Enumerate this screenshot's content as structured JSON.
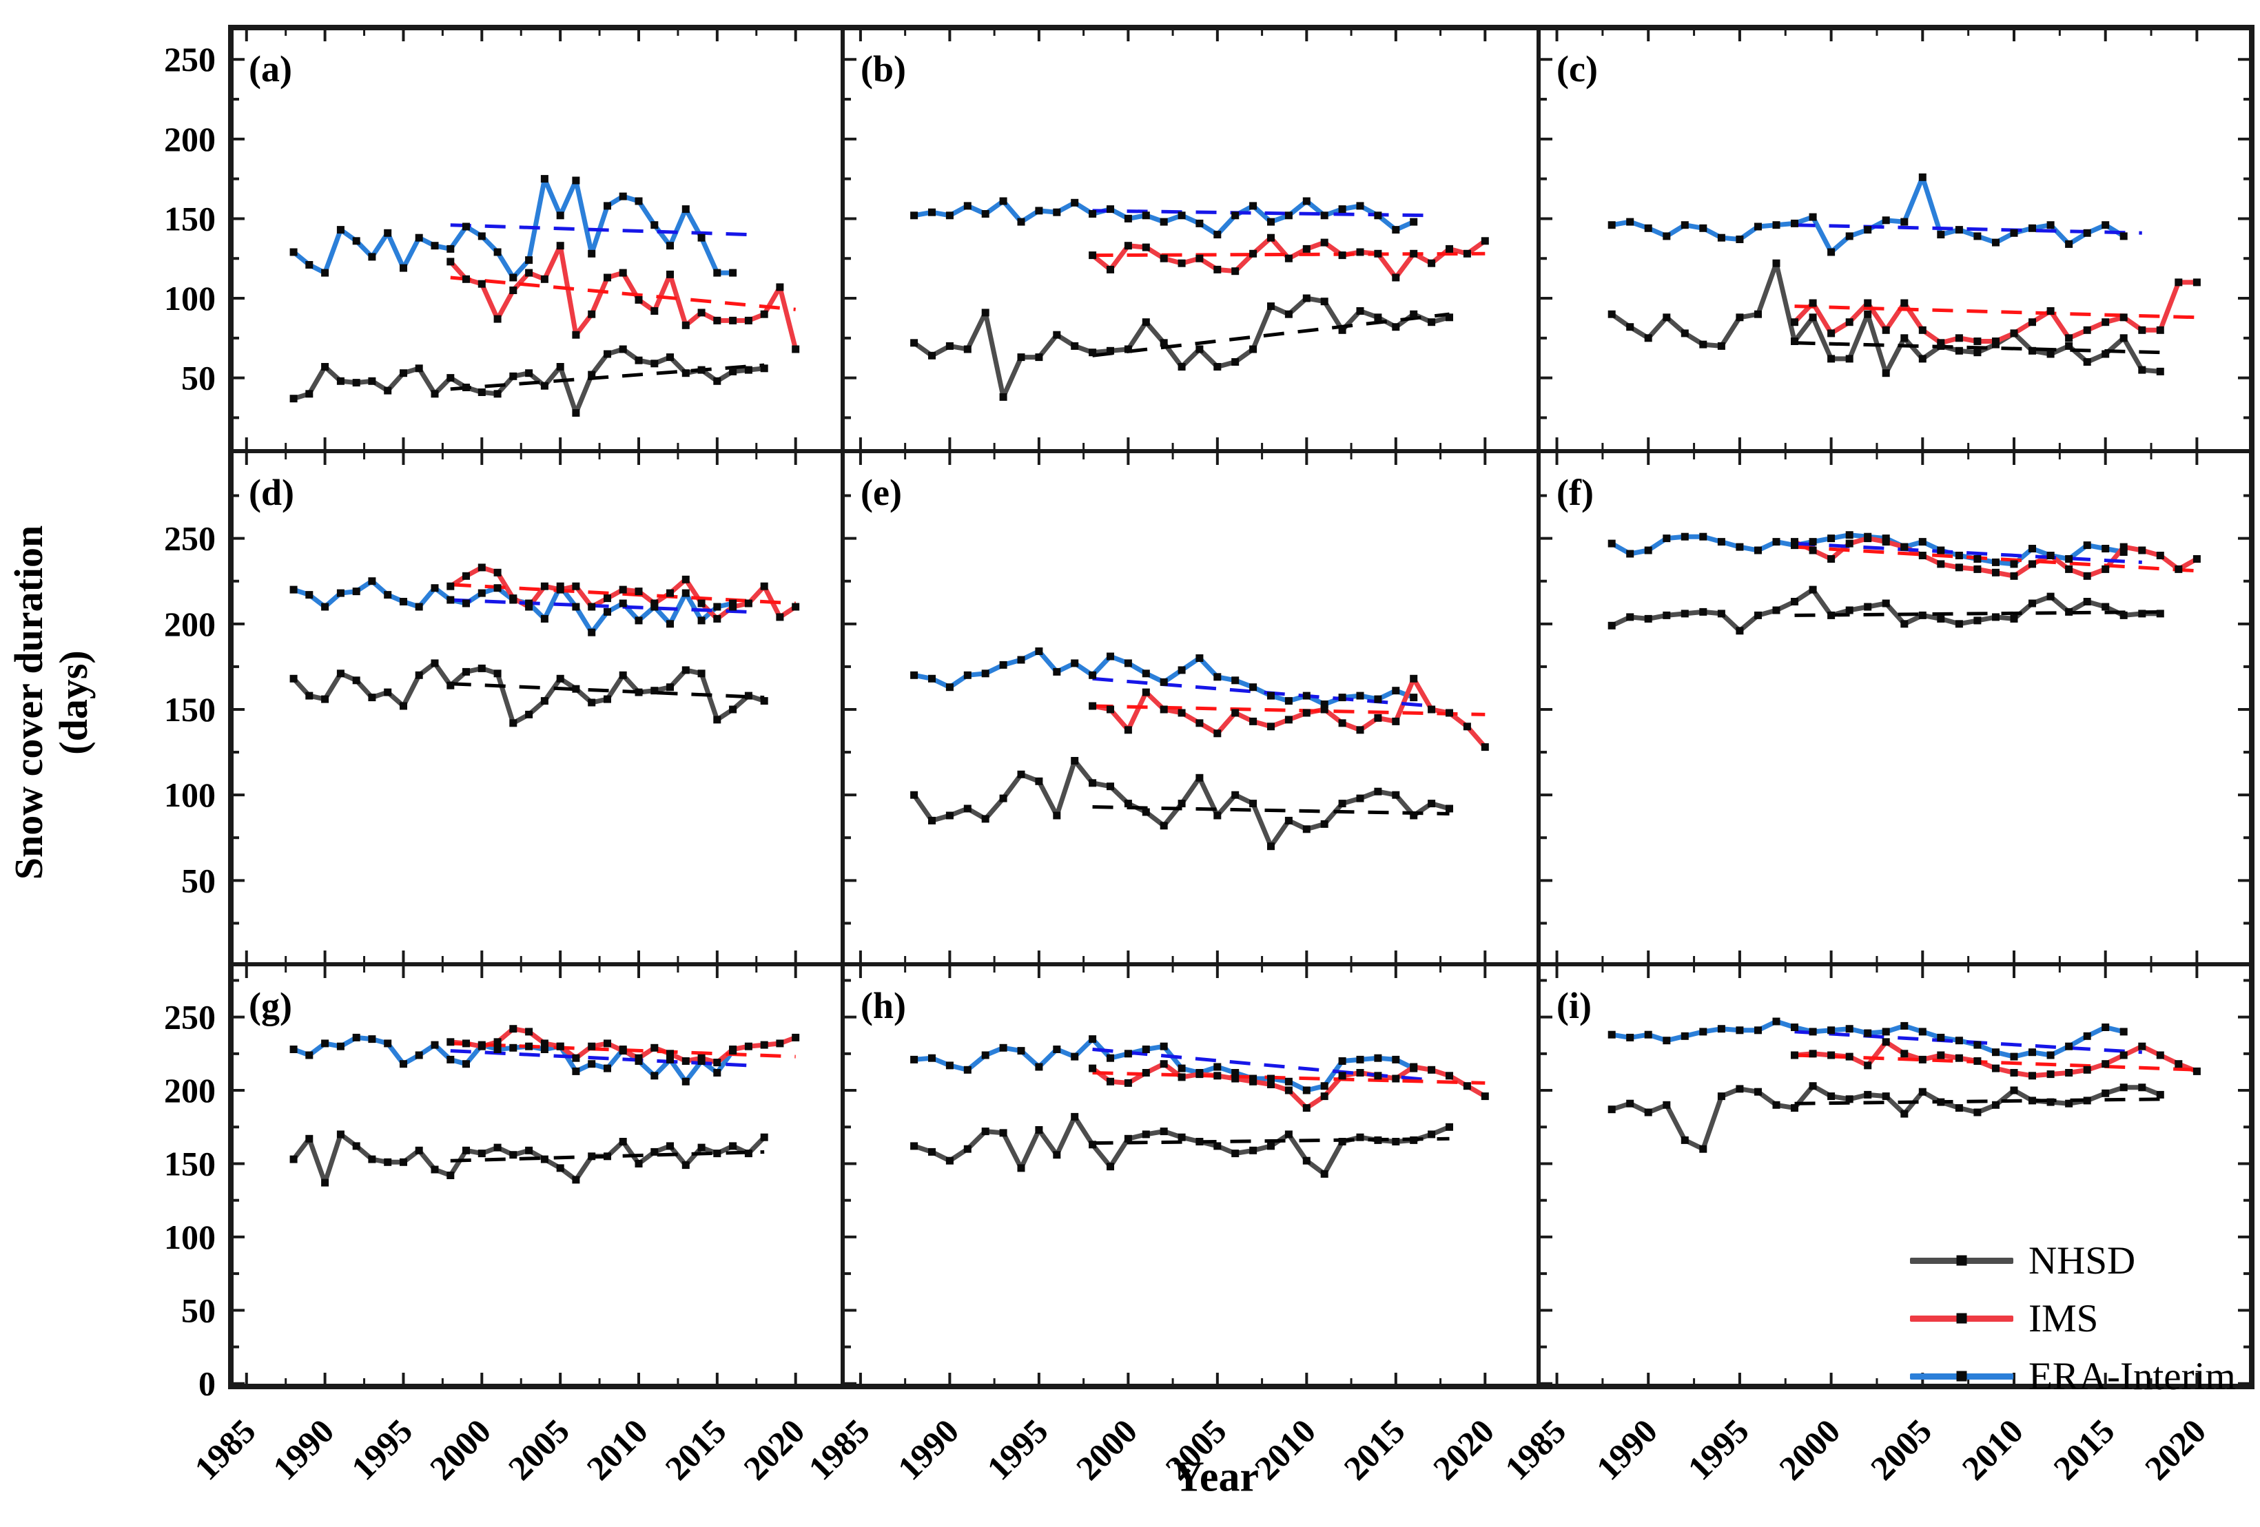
{
  "figure": {
    "ylabel_line1": "Snow cover duration",
    "ylabel_line2": "(days)",
    "xlabel": "Year",
    "legend": [
      {
        "key": "nhsd",
        "label": "NHSD",
        "color": "#4d4d4d"
      },
      {
        "key": "ims",
        "label": "IMS",
        "color": "#ee3b43"
      },
      {
        "key": "era",
        "label": "ERA-Interim",
        "color": "#2b7fd9"
      }
    ]
  },
  "chart_data": {
    "type": "line",
    "title": "",
    "xlabel": "Year",
    "ylabel": "Snow cover duration (days)",
    "legend_position": "inside panel (i), lower right",
    "grid": false,
    "marker": "black-square",
    "x_tick_labels": [
      1985,
      1990,
      1995,
      2000,
      2005,
      2010,
      2015,
      2020
    ],
    "x_range": [
      1984,
      2023
    ],
    "row_y_ticks": [
      {
        "labels": [
          250,
          200,
          150,
          100,
          50
        ],
        "ylim": [
          4,
          270
        ]
      },
      {
        "labels": [
          250,
          200,
          150,
          100,
          50
        ],
        "ylim": [
          1,
          301
        ]
      },
      {
        "labels": [
          250,
          200,
          150,
          100,
          50,
          0
        ],
        "ylim": [
          -2,
          286
        ]
      }
    ],
    "colors": {
      "nhsd": "#4d4d4d",
      "ims": "#ee3b43",
      "era": "#2b7fd9",
      "nhsd_trend": "#000000",
      "ims_trend": "#ff1515",
      "era_trend": "#1616e8",
      "axis": "#1a1a1a",
      "marker": "#0a0a0a"
    },
    "series_meta": {
      "nhsd": {
        "label": "NHSD",
        "start_year": 1988
      },
      "ims": {
        "label": "IMS",
        "start_year": 1998
      },
      "era": {
        "label": "ERA-Interim",
        "start_year": 1988
      }
    },
    "panels": [
      {
        "label": "(a)",
        "row": 0,
        "era": [
          129,
          121,
          116,
          143,
          136,
          126,
          141,
          119,
          138,
          133,
          131,
          145,
          139,
          129,
          113,
          124,
          175,
          152,
          174,
          128,
          158,
          164,
          161,
          146,
          133,
          156,
          138,
          116,
          116
        ],
        "nhsd": [
          37,
          40,
          57,
          48,
          47,
          48,
          42,
          53,
          56,
          40,
          50,
          44,
          41,
          40,
          51,
          53,
          45,
          57,
          28,
          52,
          65,
          68,
          61,
          59,
          63,
          53,
          55,
          48,
          54,
          55,
          56
        ],
        "ims": [
          123,
          112,
          109,
          87,
          105,
          116,
          112,
          133,
          77,
          90,
          113,
          116,
          99,
          92,
          115,
          83,
          91,
          86,
          86,
          86,
          90,
          107,
          68
        ],
        "trends": {
          "nhsd": [
            1998,
            43,
            2018,
            58
          ],
          "ims": [
            1998,
            113,
            2020,
            93
          ],
          "era": [
            1998,
            146,
            2017,
            140
          ]
        }
      },
      {
        "label": "(b)",
        "row": 0,
        "era": [
          152,
          154,
          152,
          158,
          153,
          161,
          148,
          155,
          154,
          160,
          153,
          156,
          150,
          152,
          148,
          152,
          147,
          140,
          152,
          158,
          148,
          152,
          161,
          152,
          156,
          158,
          152,
          143,
          148
        ],
        "nhsd": [
          72,
          64,
          70,
          68,
          91,
          38,
          63,
          63,
          77,
          70,
          66,
          67,
          68,
          85,
          72,
          57,
          68,
          57,
          60,
          68,
          95,
          90,
          100,
          98,
          80,
          92,
          88,
          82,
          90,
          85,
          88
        ],
        "ims": [
          127,
          118,
          133,
          132,
          125,
          122,
          125,
          118,
          117,
          128,
          138,
          125,
          131,
          135,
          127,
          129,
          128,
          113,
          128,
          122,
          131,
          128,
          136
        ],
        "trends": {
          "nhsd": [
            1998,
            64,
            2018,
            90
          ],
          "ims": [
            1998,
            127,
            2020,
            128
          ],
          "era": [
            1998,
            155,
            2017,
            152
          ]
        }
      },
      {
        "label": "(c)",
        "row": 0,
        "era": [
          146,
          148,
          144,
          139,
          146,
          144,
          138,
          137,
          145,
          146,
          147,
          151,
          129,
          139,
          143,
          149,
          148,
          176,
          140,
          143,
          139,
          135,
          141,
          144,
          146,
          134,
          141,
          146,
          139
        ],
        "nhsd": [
          90,
          82,
          75,
          88,
          78,
          71,
          70,
          88,
          90,
          122,
          73,
          88,
          62,
          62,
          90,
          53,
          75,
          62,
          70,
          67,
          66,
          71,
          78,
          67,
          65,
          70,
          60,
          65,
          75,
          55,
          54
        ],
        "ims": [
          85,
          97,
          78,
          85,
          97,
          80,
          97,
          80,
          72,
          75,
          73,
          73,
          78,
          85,
          92,
          75,
          80,
          85,
          88,
          80,
          80,
          110,
          110
        ],
        "trends": {
          "nhsd": [
            1998,
            72,
            2018,
            66
          ],
          "ims": [
            1998,
            95,
            2020,
            88
          ],
          "era": [
            1998,
            146,
            2017,
            141
          ]
        }
      },
      {
        "label": "(d)",
        "row": 1,
        "era": [
          220,
          217,
          210,
          218,
          219,
          225,
          217,
          213,
          210,
          221,
          214,
          212,
          218,
          221,
          214,
          212,
          203,
          222,
          210,
          195,
          207,
          212,
          202,
          210,
          200,
          218,
          202,
          210,
          212
        ],
        "nhsd": [
          168,
          158,
          156,
          171,
          167,
          157,
          160,
          152,
          170,
          177,
          164,
          172,
          174,
          171,
          142,
          147,
          155,
          168,
          162,
          154,
          156,
          170,
          160,
          161,
          163,
          173,
          171,
          144,
          150,
          158,
          155
        ],
        "ims": [
          222,
          228,
          233,
          230,
          215,
          210,
          222,
          220,
          222,
          210,
          215,
          220,
          219,
          212,
          218,
          226,
          212,
          203,
          210,
          212,
          222,
          204,
          210
        ],
        "trends": {
          "nhsd": [
            1998,
            165,
            2018,
            157
          ],
          "ims": [
            1998,
            223,
            2020,
            212
          ],
          "era": [
            1998,
            214,
            2017,
            207
          ]
        }
      },
      {
        "label": "(e)",
        "row": 1,
        "era": [
          170,
          168,
          163,
          170,
          171,
          176,
          179,
          184,
          172,
          177,
          170,
          181,
          177,
          171,
          166,
          173,
          180,
          169,
          167,
          163,
          158,
          155,
          158,
          153,
          157,
          158,
          156,
          161,
          157
        ],
        "nhsd": [
          100,
          85,
          88,
          92,
          86,
          98,
          112,
          108,
          88,
          120,
          107,
          105,
          95,
          90,
          82,
          95,
          110,
          88,
          100,
          95,
          70,
          85,
          80,
          83,
          95,
          98,
          102,
          100,
          88,
          95,
          92
        ],
        "ims": [
          152,
          150,
          138,
          160,
          150,
          148,
          142,
          136,
          148,
          143,
          140,
          144,
          148,
          150,
          142,
          138,
          145,
          143,
          168,
          150,
          148,
          140,
          128
        ],
        "trends": {
          "nhsd": [
            1998,
            93,
            2018,
            89
          ],
          "ims": [
            1998,
            152,
            2020,
            147
          ],
          "era": [
            1998,
            168,
            2017,
            152
          ]
        }
      },
      {
        "label": "(f)",
        "row": 1,
        "era": [
          247,
          241,
          243,
          250,
          251,
          251,
          248,
          245,
          243,
          248,
          246,
          248,
          250,
          252,
          251,
          250,
          245,
          248,
          243,
          240,
          238,
          236,
          235,
          244,
          240,
          238,
          246,
          244,
          242
        ],
        "nhsd": [
          199,
          204,
          203,
          205,
          206,
          207,
          206,
          196,
          205,
          208,
          213,
          220,
          205,
          208,
          210,
          212,
          200,
          205,
          203,
          200,
          202,
          204,
          203,
          212,
          216,
          207,
          213,
          210,
          205,
          206,
          206
        ],
        "ims": [
          248,
          243,
          238,
          247,
          250,
          248,
          245,
          240,
          235,
          233,
          232,
          230,
          228,
          235,
          240,
          232,
          228,
          232,
          245,
          243,
          240,
          232,
          238
        ],
        "trends": {
          "nhsd": [
            1998,
            205,
            2018,
            207
          ],
          "ims": [
            1998,
            245,
            2020,
            231
          ],
          "era": [
            1998,
            247,
            2017,
            236
          ]
        }
      },
      {
        "label": "(g)",
        "row": 2,
        "era": [
          228,
          224,
          232,
          230,
          236,
          235,
          232,
          218,
          224,
          231,
          221,
          218,
          231,
          228,
          229,
          230,
          228,
          230,
          213,
          218,
          215,
          228,
          220,
          210,
          221,
          206,
          220,
          212,
          227
        ],
        "nhsd": [
          153,
          167,
          137,
          170,
          162,
          153,
          151,
          151,
          159,
          146,
          142,
          159,
          157,
          161,
          156,
          159,
          153,
          147,
          139,
          155,
          155,
          165,
          150,
          158,
          162,
          149,
          161,
          157,
          162,
          157,
          168
        ],
        "ims": [
          233,
          232,
          230,
          233,
          242,
          240,
          232,
          230,
          222,
          230,
          232,
          227,
          222,
          229,
          225,
          220,
          222,
          219,
          228,
          230,
          231,
          232,
          236
        ],
        "trends": {
          "nhsd": [
            1998,
            152,
            2018,
            158
          ],
          "ims": [
            1998,
            232,
            2020,
            223
          ],
          "era": [
            1998,
            227,
            2017,
            217
          ]
        }
      },
      {
        "label": "(h)",
        "row": 2,
        "era": [
          221,
          222,
          217,
          214,
          224,
          229,
          227,
          216,
          228,
          223,
          235,
          222,
          225,
          228,
          230,
          215,
          212,
          216,
          212,
          208,
          208,
          206,
          200,
          203,
          220,
          221,
          222,
          221,
          215
        ],
        "nhsd": [
          162,
          158,
          152,
          160,
          172,
          171,
          147,
          173,
          156,
          182,
          163,
          148,
          167,
          170,
          172,
          168,
          165,
          162,
          157,
          159,
          162,
          170,
          152,
          143,
          165,
          168,
          166,
          165,
          166,
          170,
          175
        ],
        "ims": [
          215,
          206,
          205,
          212,
          218,
          209,
          211,
          210,
          208,
          206,
          204,
          200,
          188,
          196,
          210,
          212,
          210,
          208,
          216,
          214,
          210,
          203,
          196
        ],
        "trends": {
          "nhsd": [
            1998,
            164,
            2018,
            167
          ],
          "ims": [
            1998,
            212,
            2020,
            205
          ],
          "era": [
            1998,
            228,
            2017,
            207
          ]
        }
      },
      {
        "label": "(i)",
        "row": 2,
        "era": [
          238,
          236,
          238,
          234,
          237,
          240,
          242,
          241,
          241,
          247,
          243,
          240,
          241,
          242,
          239,
          240,
          244,
          240,
          236,
          234,
          231,
          226,
          223,
          226,
          224,
          230,
          237,
          243,
          240
        ],
        "nhsd": [
          187,
          191,
          185,
          190,
          166,
          160,
          196,
          201,
          199,
          190,
          188,
          203,
          196,
          194,
          197,
          196,
          184,
          199,
          192,
          188,
          185,
          190,
          200,
          193,
          192,
          191,
          193,
          198,
          202,
          202,
          197
        ],
        "ims": [
          224,
          225,
          224,
          223,
          217,
          233,
          225,
          221,
          224,
          222,
          220,
          215,
          212,
          210,
          211,
          212,
          214,
          218,
          224,
          230,
          224,
          218,
          213
        ],
        "trends": {
          "nhsd": [
            1998,
            191,
            2018,
            194
          ],
          "ims": [
            1998,
            224,
            2020,
            214
          ],
          "era": [
            1998,
            240,
            2017,
            226
          ]
        }
      }
    ]
  }
}
